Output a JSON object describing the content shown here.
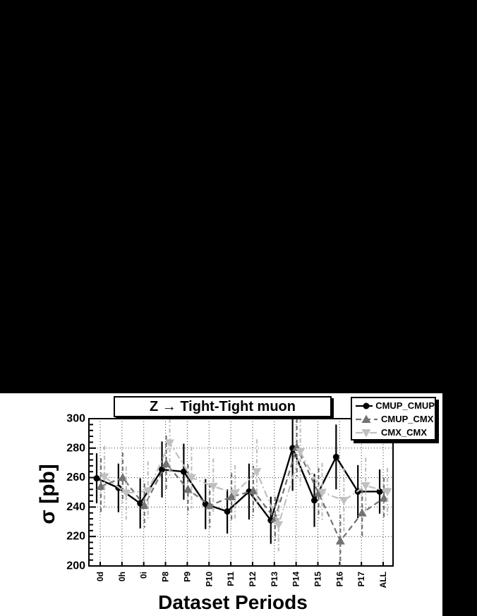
{
  "window": {
    "background": "#000000",
    "canvas_background": "#ffffff"
  },
  "chart_data": {
    "type": "line",
    "title": "Z → Tight-Tight muon",
    "xlabel": "Dataset Periods",
    "ylabel": "σ [pb]",
    "ylim": [
      200,
      300
    ],
    "yticks": [
      200,
      220,
      240,
      260,
      280,
      300
    ],
    "y_minor_step": 4,
    "grid": "dotted",
    "legend_position": "top-right",
    "categories": [
      "0d",
      "0h",
      "0i",
      "P8",
      "P9",
      "P10",
      "P11",
      "P12",
      "P13",
      "P14",
      "P15",
      "P16",
      "P17",
      "ALL"
    ],
    "series": [
      {
        "name": "CMUP_CMUP",
        "marker": "circle",
        "line": "solid",
        "color": "#000000",
        "values": [
          259.5,
          253,
          242.5,
          265.5,
          264,
          242,
          237,
          250.5,
          231,
          280,
          244.5,
          274,
          250.5,
          250.5
        ],
        "errors": [
          17,
          16.5,
          17,
          19,
          19,
          17,
          15,
          19,
          16,
          29,
          18,
          22,
          18,
          15
        ]
      },
      {
        "name": "CMUP_CMX",
        "marker": "triangle-up",
        "line": "dashed",
        "color": "#737373",
        "values": [
          254,
          260,
          241,
          269.5,
          252,
          241,
          247,
          251,
          232,
          280.5,
          249.5,
          217,
          236,
          246
        ],
        "errors": [
          19,
          17,
          15,
          19,
          17,
          15,
          16,
          17,
          15,
          20,
          17,
          18,
          16,
          14
        ]
      },
      {
        "name": "CMX_CMX",
        "marker": "triangle-down",
        "line": "dash-dot",
        "color": "#c0c0c0",
        "values": [
          260.5,
          249.5,
          251,
          283.5,
          260,
          254,
          249.5,
          264,
          228,
          277.5,
          250,
          244.5,
          254.5,
          250.5
        ],
        "errors": [
          21,
          18,
          20,
          23,
          21,
          19,
          19,
          22,
          18,
          24,
          20,
          22,
          19,
          16
        ]
      }
    ]
  }
}
